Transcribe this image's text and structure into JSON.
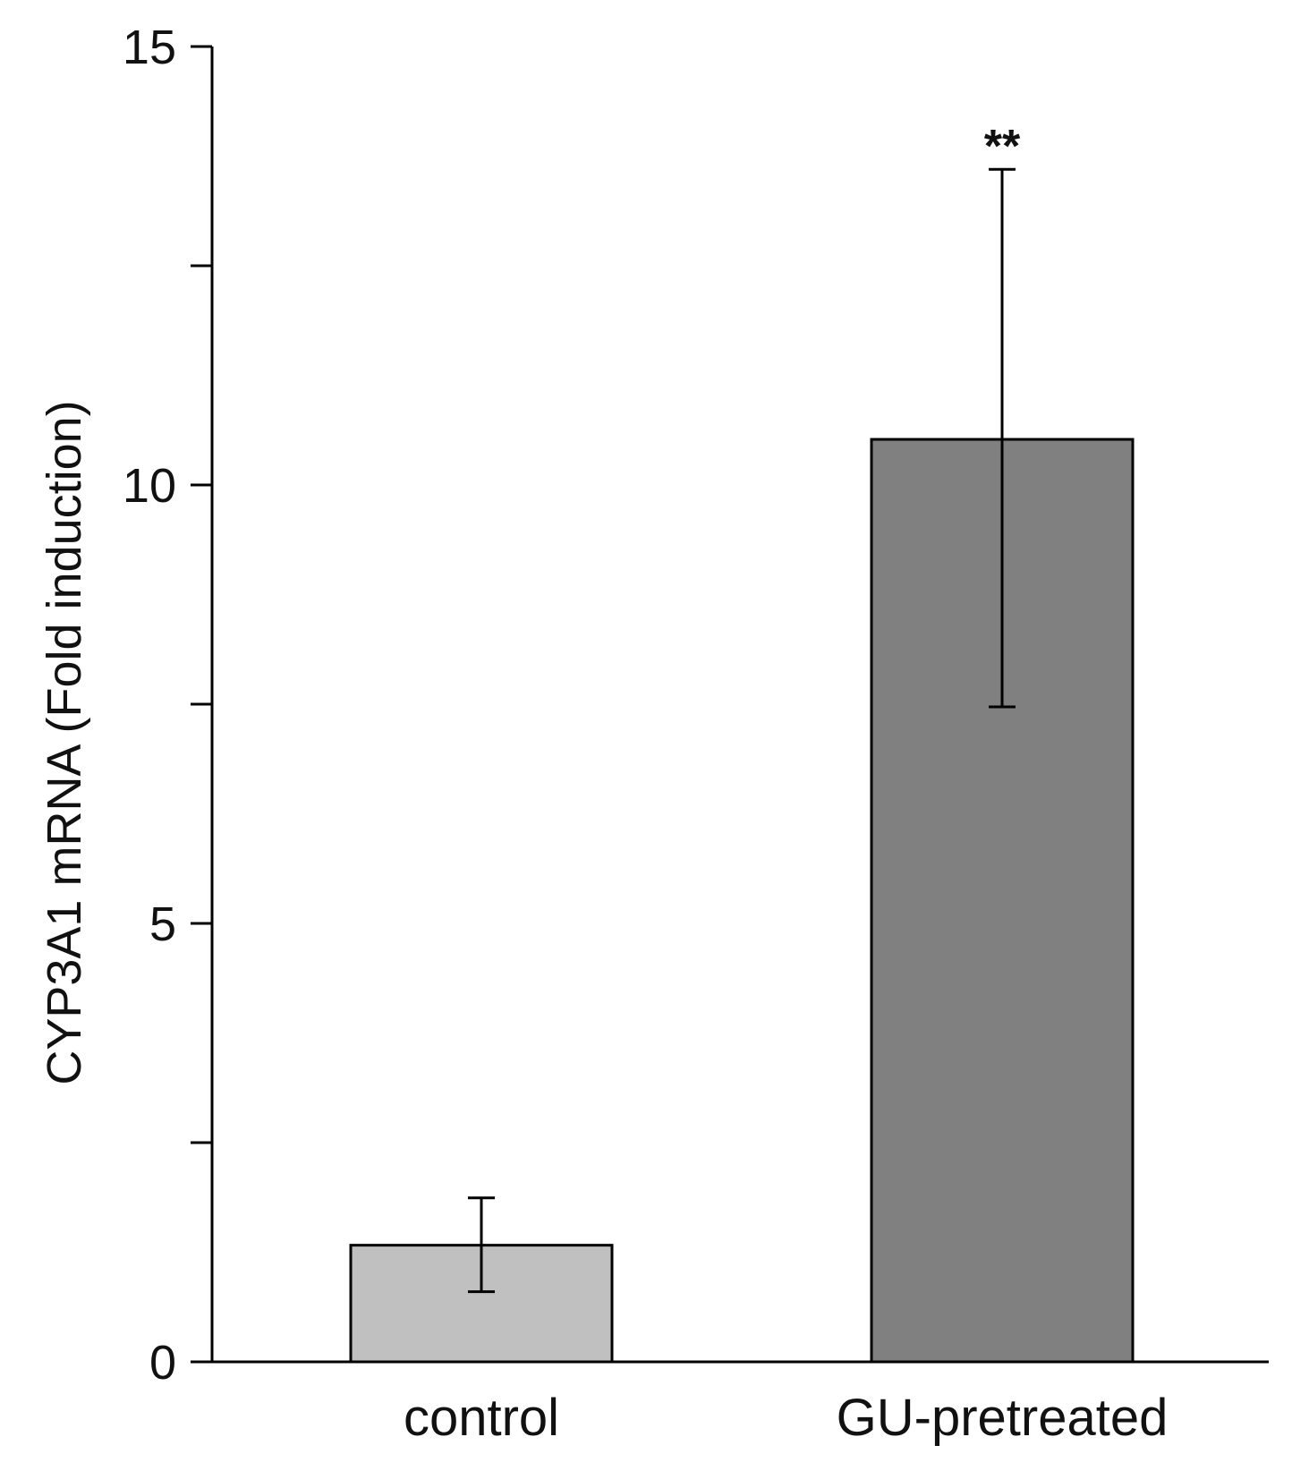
{
  "chart_data": {
    "type": "bar",
    "title": "",
    "xlabel": "",
    "ylabel": "CYP3A1 mRNA (Fold induction)",
    "ylim": [
      0,
      15
    ],
    "major_ticks": [
      0,
      5,
      10,
      15
    ],
    "tick_labels": [
      "0",
      "5",
      "10",
      "15"
    ],
    "minor_ticks": [
      2.5,
      7.5,
      12.5
    ],
    "grid": false,
    "categories": [
      "control",
      "GU-pretreated"
    ],
    "values": [
      1.33,
      10.52
    ],
    "error_low": [
      0.8,
      7.47
    ],
    "error_high": [
      1.87,
      13.6
    ],
    "bar_colors": [
      "#c0c0c0",
      "#808080"
    ],
    "annotations": [
      "",
      "**"
    ]
  }
}
